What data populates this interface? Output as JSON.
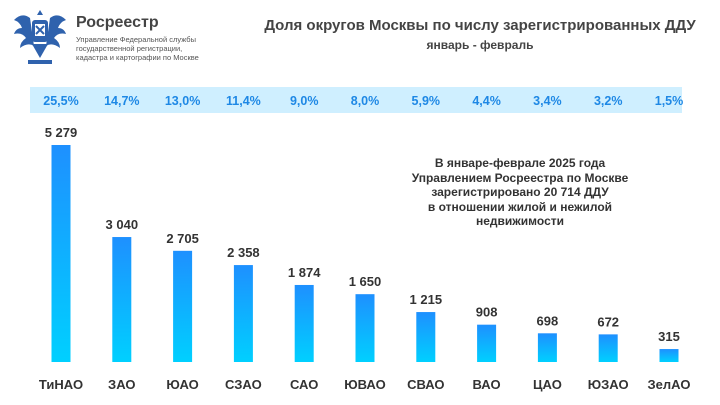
{
  "header": {
    "org_name": "Росреестр",
    "org_sub": [
      "Управление Федеральной службы",
      "государственной регистрации,",
      "кадастра и картографии по Москве"
    ],
    "title": "Доля округов Москвы по числу зарегистрированных ДДУ",
    "subtitle": "январь - февраль"
  },
  "note": [
    "В январе-феврале 2025 года",
    "Управлением Росреестра по Москве",
    "зарегистрировано 20 714 ДДУ",
    "в отношении жилой и нежилой",
    "недвижимости"
  ],
  "colors": {
    "bar_top": "#1e90ff",
    "bar_bottom": "#00d0ff",
    "pct_band": "#cfefff",
    "pct_text": "#1e88e5",
    "logo": "#2f62ad"
  },
  "chart_data": {
    "type": "bar",
    "categories": [
      "ТиНАО",
      "ЗАО",
      "ЮАО",
      "СЗАО",
      "САО",
      "ЮВАО",
      "СВАО",
      "ВАО",
      "ЦАО",
      "ЮЗАО",
      "ЗелАО"
    ],
    "values": [
      5279,
      3040,
      2705,
      2358,
      1874,
      1650,
      1215,
      908,
      698,
      672,
      315
    ],
    "value_labels": [
      "5 279",
      "3 040",
      "2 705",
      "2 358",
      "1 874",
      "1 650",
      "1 215",
      "908",
      "698",
      "672",
      "315"
    ],
    "shares": [
      "25,5%",
      "14,7%",
      "13,0%",
      "11,4%",
      "9,0%",
      "8,0%",
      "5,9%",
      "4,4%",
      "3,4%",
      "3,2%",
      "1,5%"
    ],
    "ylim": [
      0,
      5279
    ],
    "grid": false,
    "legend": "none"
  }
}
